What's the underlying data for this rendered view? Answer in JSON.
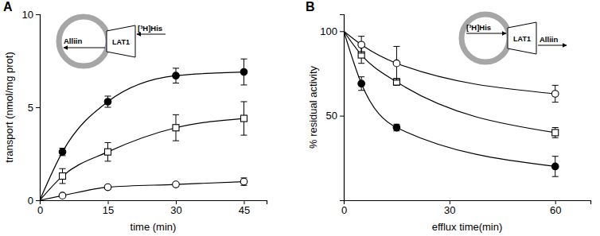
{
  "chart_data": [
    {
      "type": "line",
      "title": "A",
      "x_label": "time (min)",
      "y_label": "transport (nmol/mg prot)",
      "xlim": [
        0,
        50
      ],
      "xticks": [
        0,
        15,
        30,
        45
      ],
      "ylim": [
        0,
        10
      ],
      "yticks": [
        0,
        5,
        10
      ],
      "annotations": {
        "transporter": "LAT1",
        "outside": "[³H]His",
        "inside": "Alliin"
      },
      "x": [
        0,
        5,
        15,
        30,
        45
      ],
      "series": [
        {
          "color": "#000000",
          "marker": "circle-filled",
          "values": [
            0,
            2.6,
            5.3,
            6.7,
            6.9
          ],
          "errors": [
            null,
            0.2,
            0.3,
            0.4,
            0.7
          ]
        },
        {
          "color": "#000000",
          "marker": "square-open",
          "values": [
            0,
            1.3,
            2.6,
            3.9,
            4.4
          ],
          "errors": [
            null,
            0.4,
            0.5,
            0.7,
            0.9
          ]
        },
        {
          "color": "#000000",
          "marker": "circle-open",
          "values": [
            0,
            0.25,
            0.7,
            0.85,
            1.0
          ],
          "errors": [
            null,
            0.05,
            0.1,
            0.1,
            0.2
          ]
        }
      ]
    },
    {
      "type": "line",
      "title": "B",
      "x_label": "efflux time(min)",
      "y_label": "% residual activity",
      "xlim": [
        0,
        70
      ],
      "xticks": [
        0,
        30,
        60
      ],
      "ylim": [
        0,
        110
      ],
      "yticks": [
        50,
        100
      ],
      "annotations": {
        "transporter": "LAT1",
        "outside": "Alliin",
        "inside": "[³H]His"
      },
      "x": [
        0,
        5,
        15,
        60
      ],
      "series": [
        {
          "color": "#000000",
          "marker": "circle-filled",
          "values": [
            100,
            69,
            43,
            20
          ],
          "errors": [
            null,
            4,
            2,
            6
          ]
        },
        {
          "color": "#000000",
          "marker": "square-open",
          "values": [
            100,
            86,
            70,
            40
          ],
          "errors": [
            null,
            5,
            2,
            3
          ]
        },
        {
          "color": "#000000",
          "marker": "circle-open",
          "values": [
            100,
            92,
            81,
            63
          ],
          "errors": [
            null,
            5,
            10,
            5
          ]
        }
      ]
    }
  ]
}
